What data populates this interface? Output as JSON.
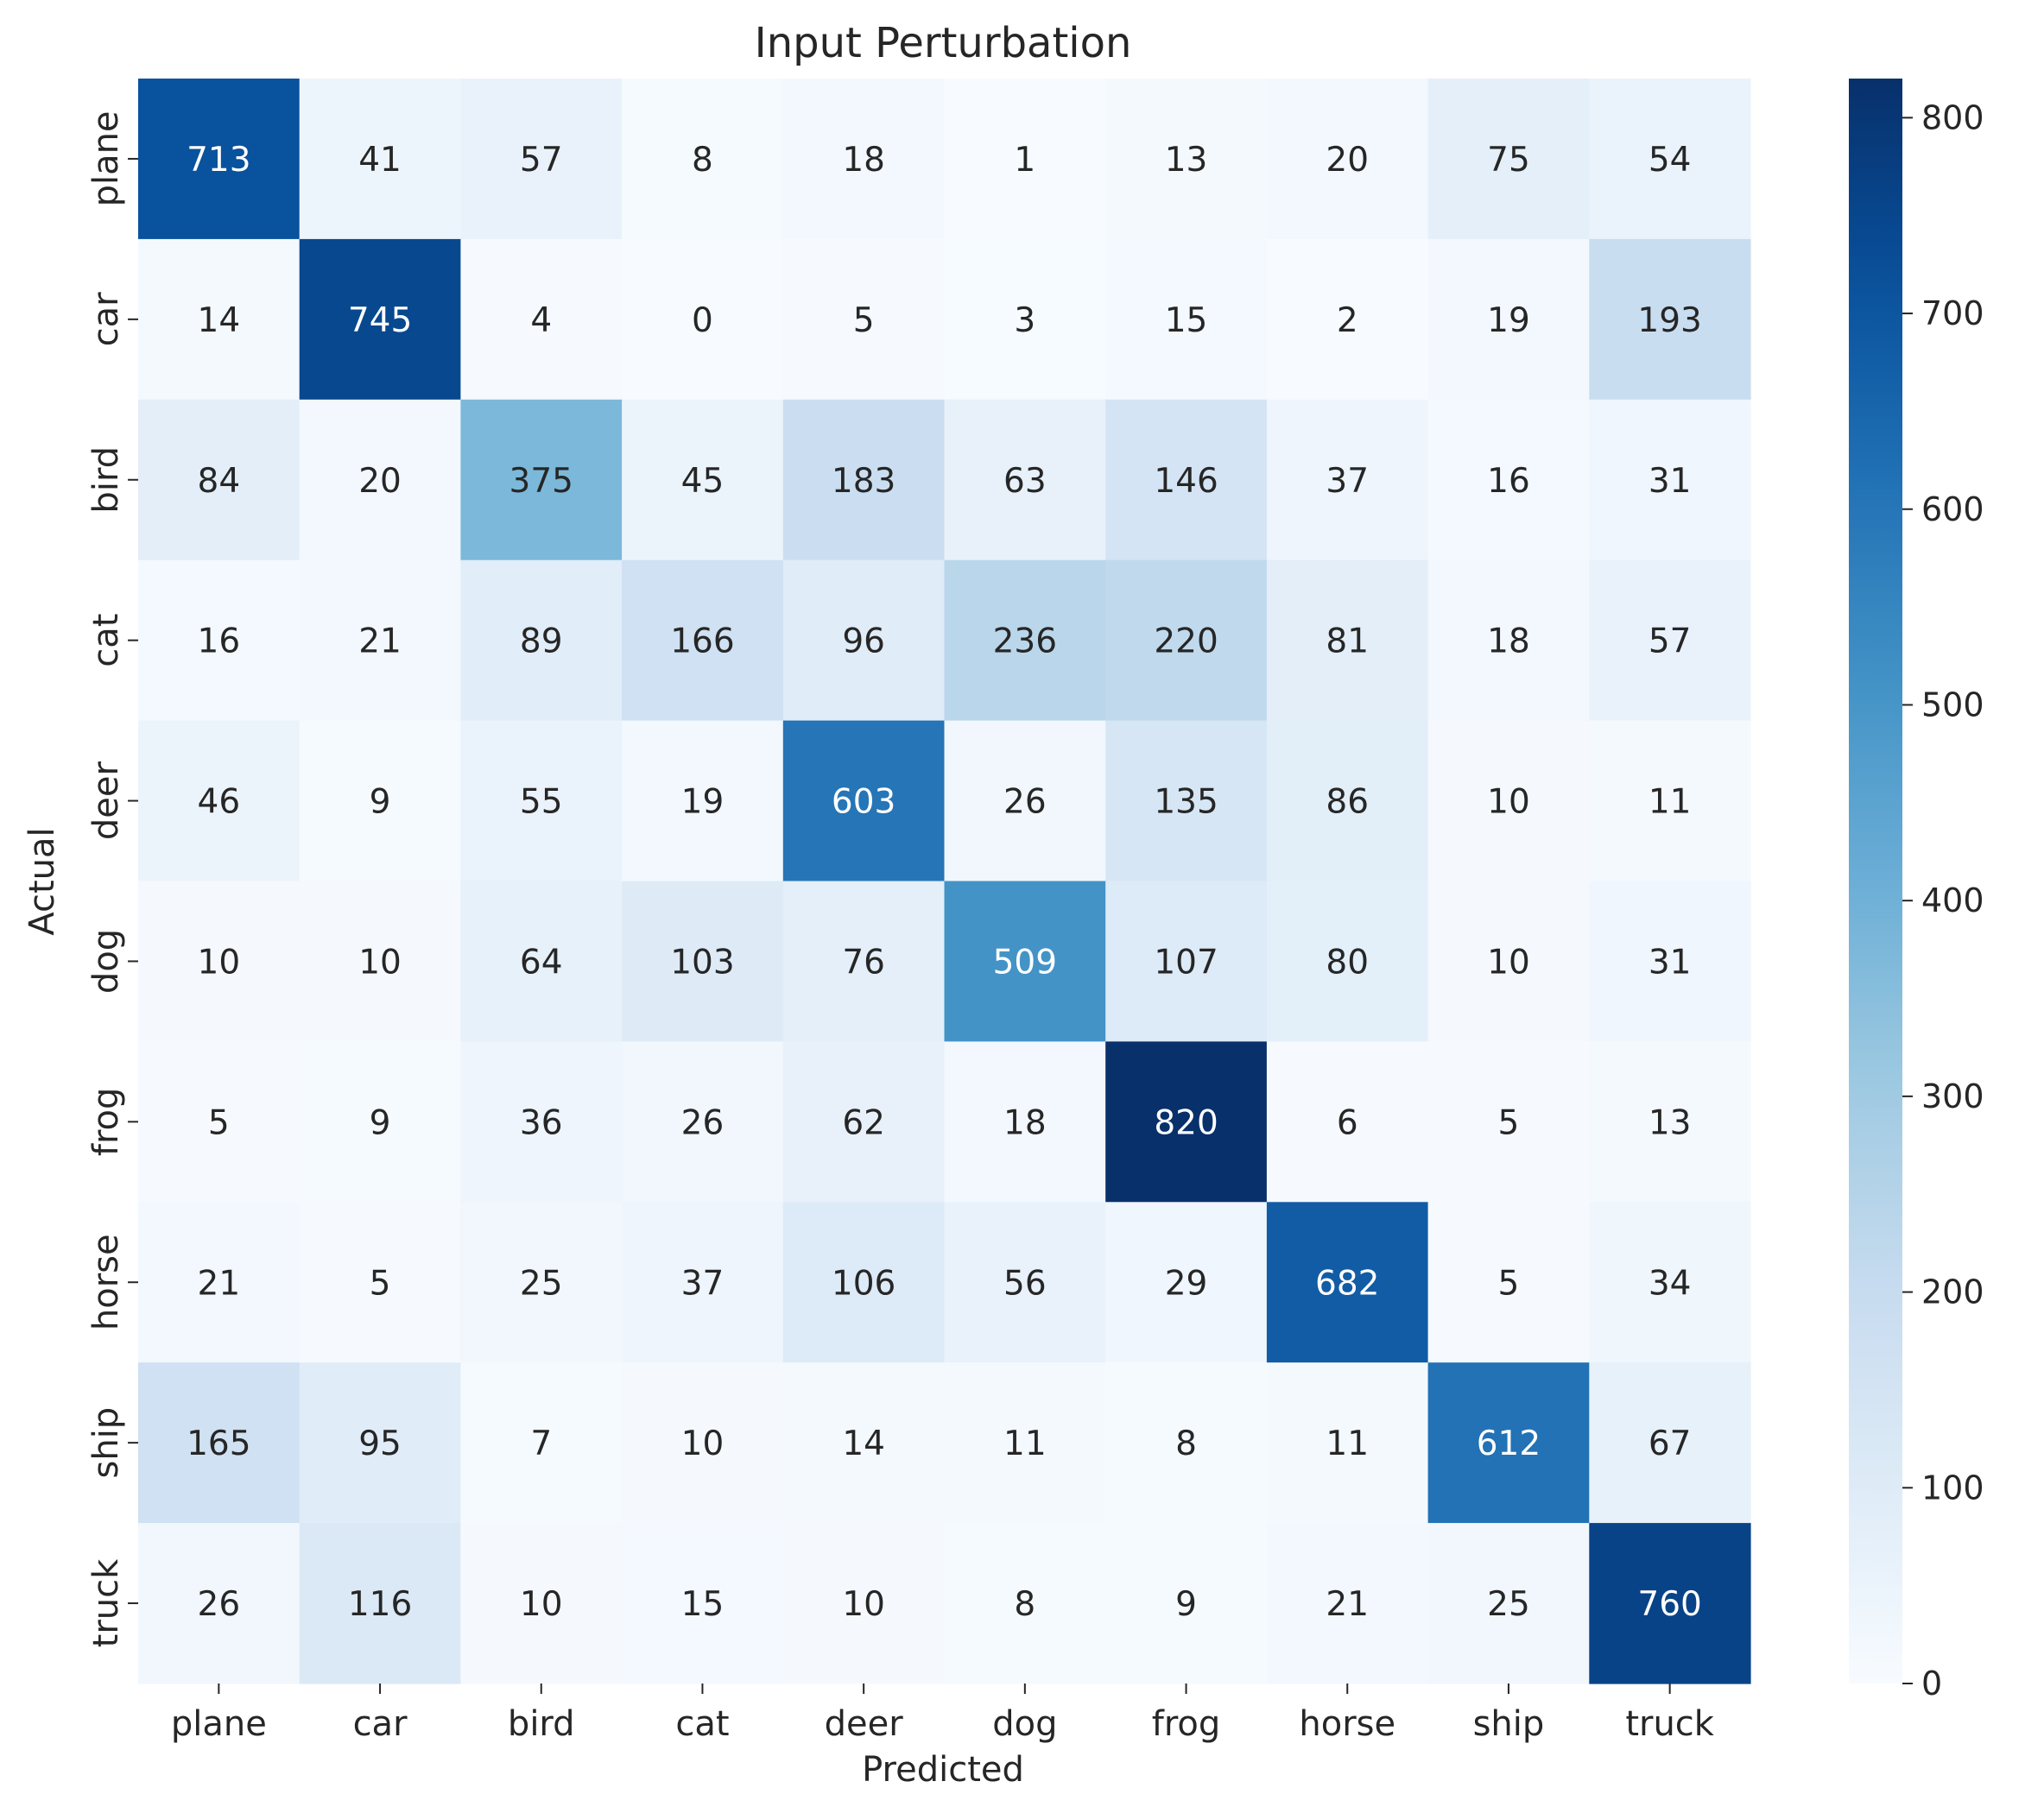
{
  "chart_data": {
    "type": "heatmap",
    "title": "Input Perturbation",
    "xlabel": "Predicted",
    "ylabel": "Actual",
    "x_categories": [
      "plane",
      "car",
      "bird",
      "cat",
      "deer",
      "dog",
      "frog",
      "horse",
      "ship",
      "truck"
    ],
    "y_categories": [
      "plane",
      "car",
      "bird",
      "cat",
      "deer",
      "dog",
      "frog",
      "horse",
      "ship",
      "truck"
    ],
    "values": [
      [
        713,
        41,
        57,
        8,
        18,
        1,
        13,
        20,
        75,
        54
      ],
      [
        14,
        745,
        4,
        0,
        5,
        3,
        15,
        2,
        19,
        193
      ],
      [
        84,
        20,
        375,
        45,
        183,
        63,
        146,
        37,
        16,
        31
      ],
      [
        16,
        21,
        89,
        166,
        96,
        236,
        220,
        81,
        18,
        57
      ],
      [
        46,
        9,
        55,
        19,
        603,
        26,
        135,
        86,
        10,
        11
      ],
      [
        10,
        10,
        64,
        103,
        76,
        509,
        107,
        80,
        10,
        31
      ],
      [
        5,
        9,
        36,
        26,
        62,
        18,
        820,
        6,
        5,
        13
      ],
      [
        21,
        5,
        25,
        37,
        106,
        56,
        29,
        682,
        5,
        34
      ],
      [
        165,
        95,
        7,
        10,
        14,
        11,
        8,
        11,
        612,
        67
      ],
      [
        26,
        116,
        10,
        15,
        10,
        8,
        9,
        21,
        25,
        760
      ]
    ],
    "colormap": "Blues",
    "colorbar": {
      "range": [
        0,
        820
      ],
      "ticks": [
        0,
        100,
        200,
        300,
        400,
        500,
        600,
        700,
        800
      ]
    }
  }
}
